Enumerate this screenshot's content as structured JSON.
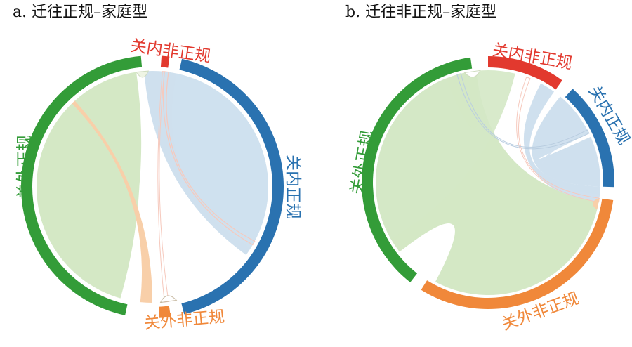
{
  "colors": {
    "local_formal": "#2a72b0",
    "local_informal": "#e2392e",
    "outside_formal": "#339c38",
    "outside_informal": "#f0883a",
    "chord_green": "#d4e8c5",
    "chord_blue": "#cfe0ee",
    "chord_red": "#f6c9bd",
    "chord_orange": "#f8cfa9"
  },
  "panels": [
    {
      "id": "a",
      "title": "a. 迁往正规–家庭型",
      "nodes": [
        {
          "key": "local_informal",
          "label": "关内非正规"
        },
        {
          "key": "local_formal",
          "label": "关内正规"
        },
        {
          "key": "outside_informal",
          "label": "关外非正规"
        },
        {
          "key": "outside_formal",
          "label": "关外正规"
        }
      ]
    },
    {
      "id": "b",
      "title": "b. 迁往非正规–家庭型",
      "nodes": [
        {
          "key": "local_informal",
          "label": "关内非正规"
        },
        {
          "key": "local_formal",
          "label": "关内正规"
        },
        {
          "key": "outside_informal",
          "label": "关外非正规"
        },
        {
          "key": "outside_formal",
          "label": "关外正规"
        }
      ]
    }
  ]
}
